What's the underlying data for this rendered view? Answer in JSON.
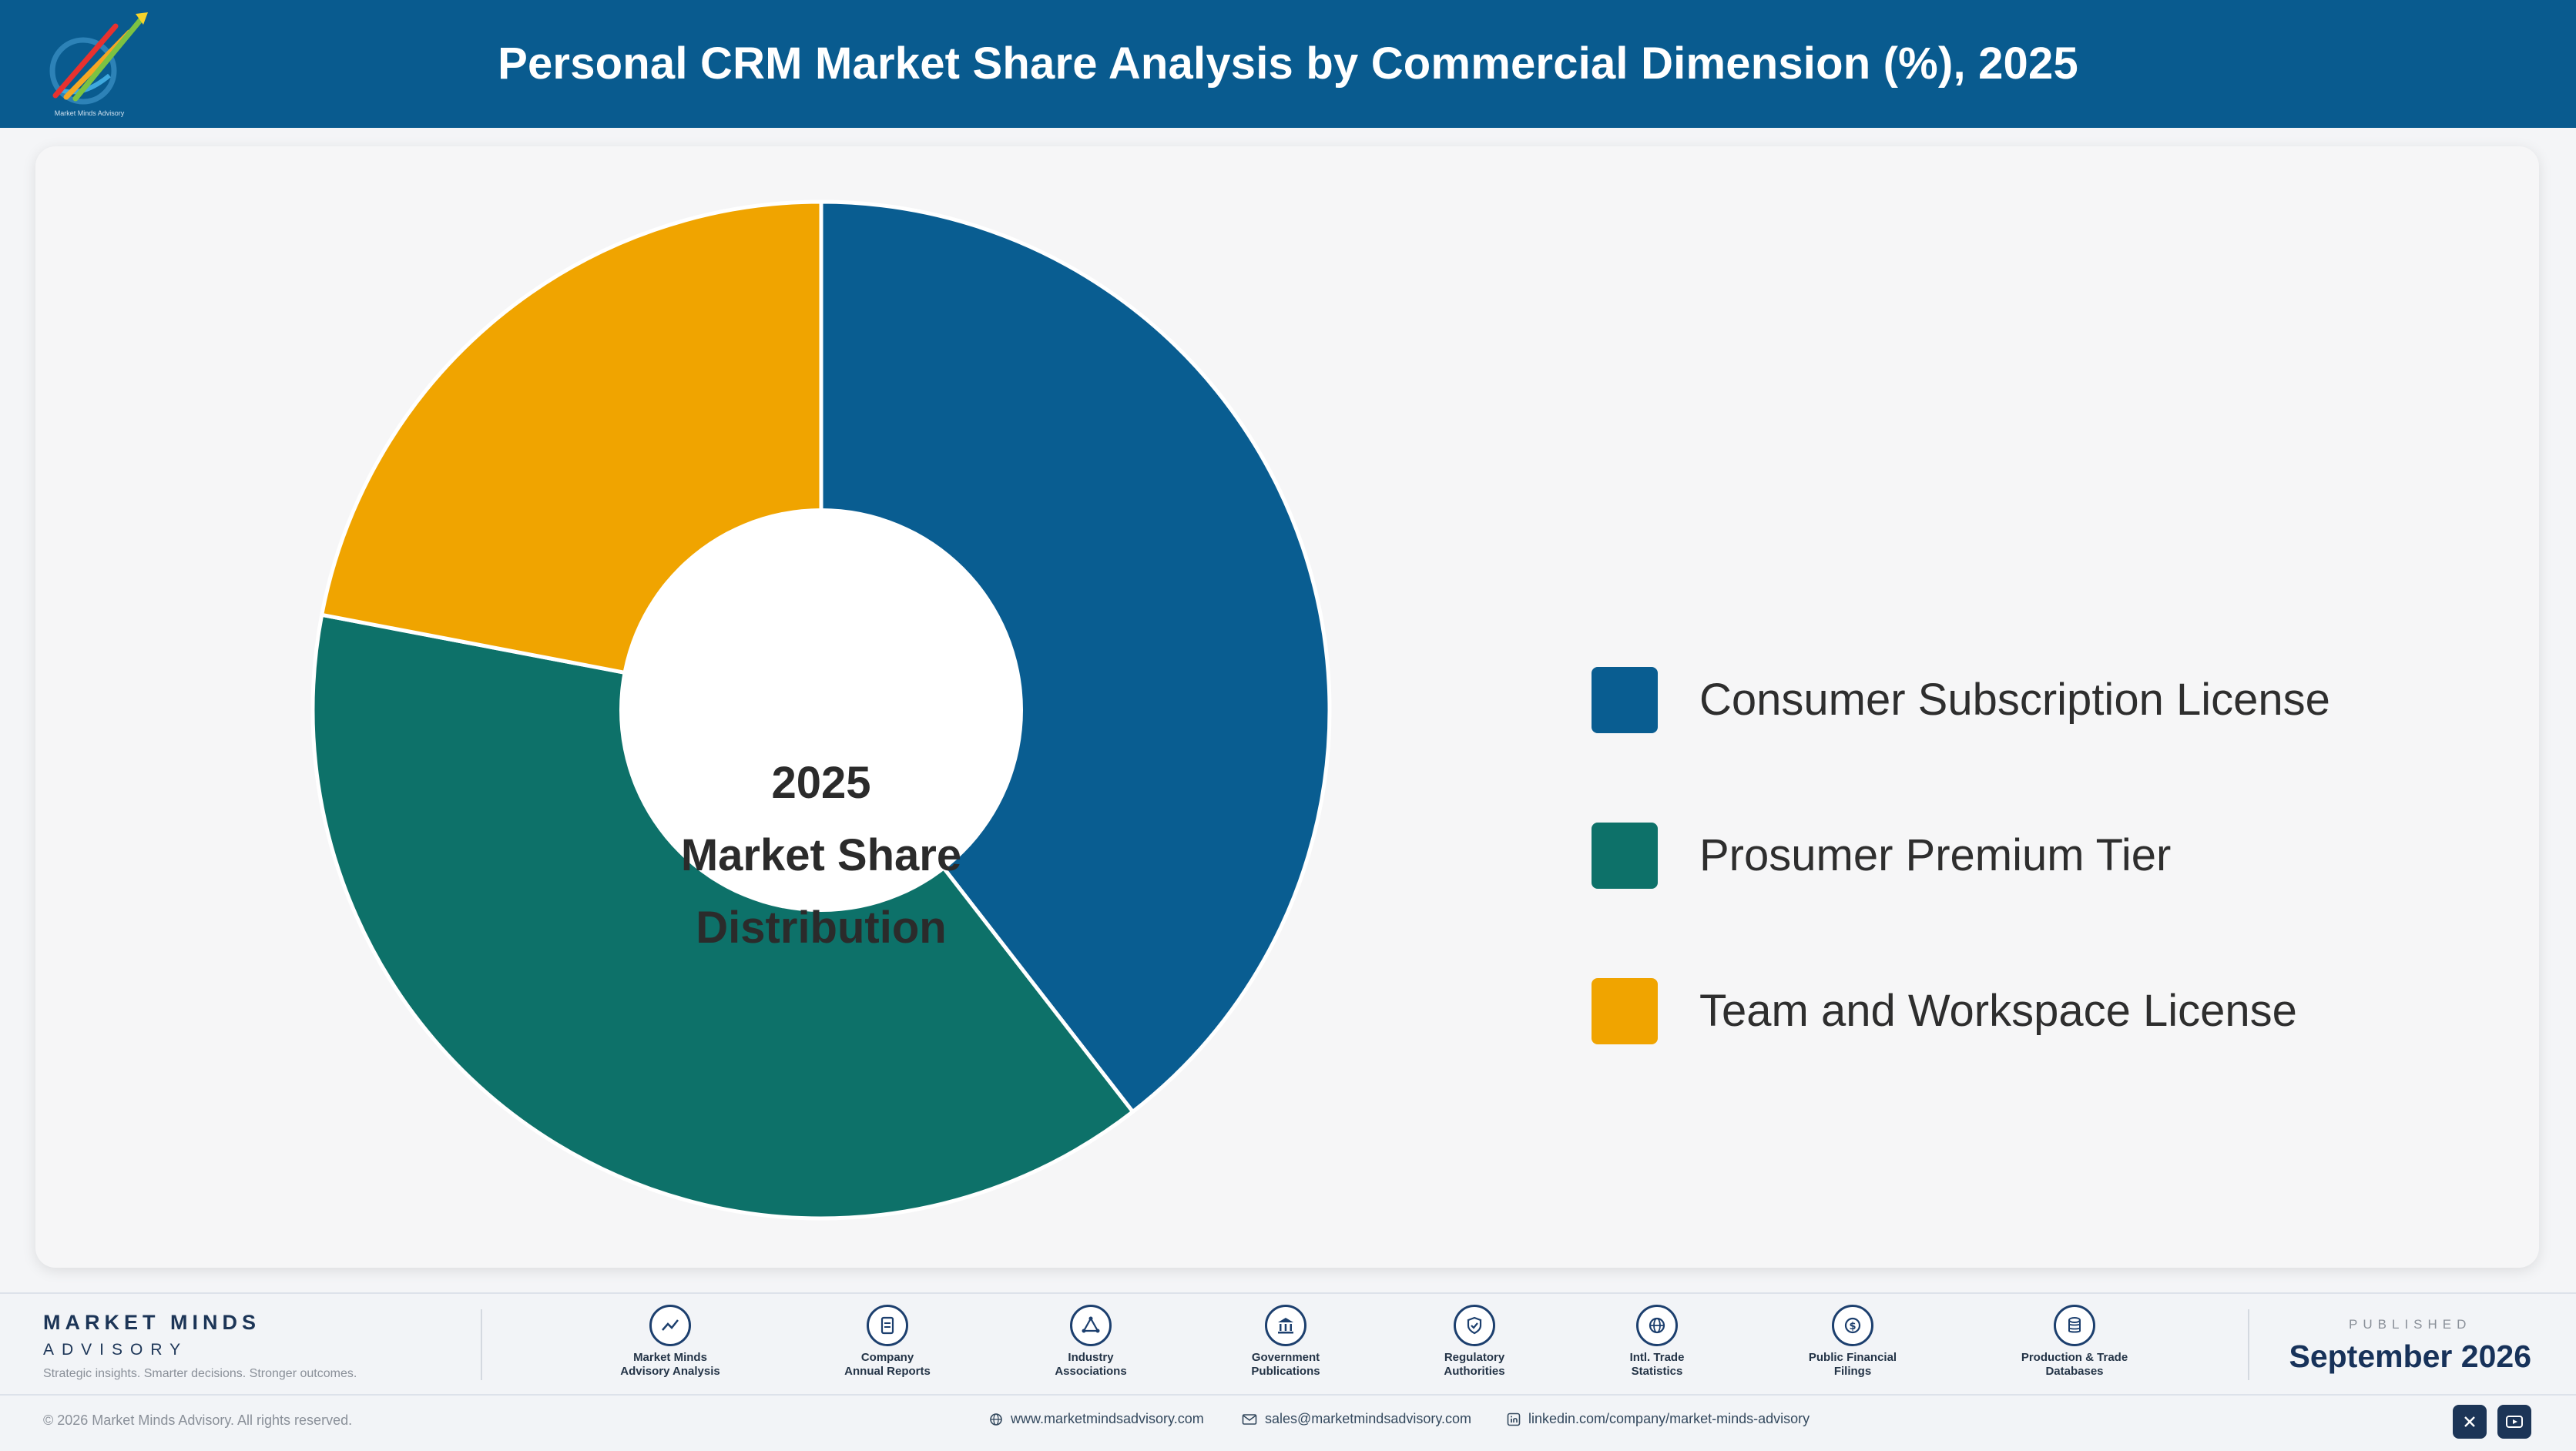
{
  "header": {
    "title": "Personal CRM Market Share Analysis by Commercial Dimension (%), 2025",
    "logo_caption": "Market Minds Advisory"
  },
  "chart_data": {
    "type": "pie",
    "title": "Personal CRM Market Share Analysis by Commercial Dimension (%), 2025",
    "center_label": [
      "2025",
      "Market Share",
      "Distribution"
    ],
    "categories": [
      "Consumer Subscription License",
      "Prosumer Premium Tier",
      "Team and Workspace License"
    ],
    "values": [
      39.5,
      38.5,
      22.0
    ],
    "colors": [
      "#095d91",
      "#0d7169",
      "#f0a400"
    ],
    "legend_position": "right",
    "donut": true
  },
  "footer": {
    "brand_name": "MARKET MINDS",
    "brand_sub": "ADVISORY",
    "tagline": "Strategic insights. Smarter decisions. Stronger outcomes.",
    "sources": [
      {
        "line1": "Market Minds",
        "line2": "Advisory Analysis",
        "icon": "trend-line-icon"
      },
      {
        "line1": "Company",
        "line2": "Annual Reports",
        "icon": "document-icon"
      },
      {
        "line1": "Industry",
        "line2": "Associations",
        "icon": "network-triangle-icon"
      },
      {
        "line1": "Government",
        "line2": "Publications",
        "icon": "government-building-icon"
      },
      {
        "line1": "Regulatory",
        "line2": "Authorities",
        "icon": "shield-check-icon"
      },
      {
        "line1": "Intl. Trade",
        "line2": "Statistics",
        "icon": "globe-icon"
      },
      {
        "line1": "Public Financial",
        "line2": "Filings",
        "icon": "dollar-coin-icon"
      },
      {
        "line1": "Production & Trade",
        "line2": "Databases",
        "icon": "database-icon"
      }
    ],
    "published_label": "PUBLISHED",
    "published_date": "September 2026",
    "copyright": "© 2026 Market Minds Advisory. All rights reserved.",
    "website": "www.marketmindsadvisory.com",
    "email": "sales@marketmindsadvisory.com",
    "linkedin": "linkedin.com/company/market-minds-advisory"
  }
}
